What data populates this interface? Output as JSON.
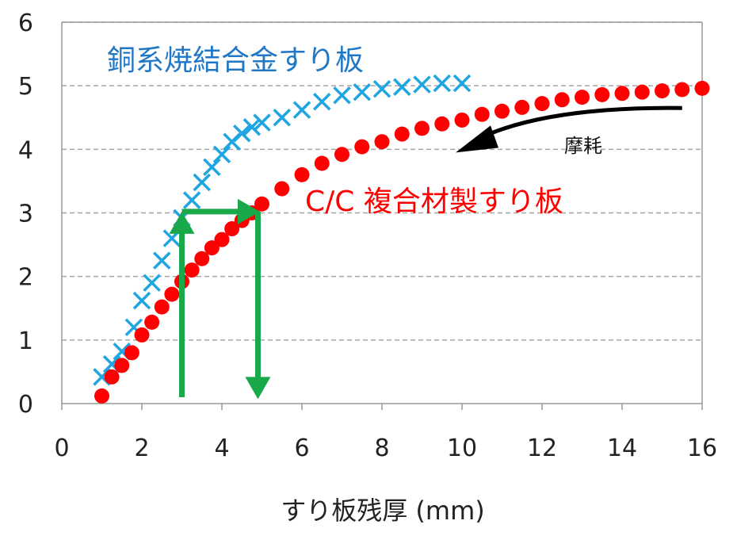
{
  "chart_data": {
    "type": "scatter",
    "xlabel": "すり板残厚 (mm)",
    "ylabel": "",
    "xlim": [
      0,
      16
    ],
    "ylim": [
      0,
      6
    ],
    "xticks": [
      "0",
      "2",
      "4",
      "6",
      "8",
      "10",
      "12",
      "14",
      "16"
    ],
    "yticks": [
      "0",
      "1",
      "2",
      "3",
      "4",
      "5",
      "6"
    ],
    "grid": "horizontal dashed",
    "series": [
      {
        "name": "銅系焼結合金すり板",
        "marker": "x",
        "color": "#1fa6e0",
        "points": [
          [
            1.0,
            0.42
          ],
          [
            1.25,
            0.62
          ],
          [
            1.5,
            0.82
          ],
          [
            1.8,
            1.2
          ],
          [
            2.0,
            1.62
          ],
          [
            2.25,
            1.9
          ],
          [
            2.5,
            2.25
          ],
          [
            2.75,
            2.6
          ],
          [
            3.0,
            2.92
          ],
          [
            3.25,
            3.2
          ],
          [
            3.5,
            3.48
          ],
          [
            3.75,
            3.72
          ],
          [
            4.0,
            3.92
          ],
          [
            4.25,
            4.12
          ],
          [
            4.5,
            4.25
          ],
          [
            4.75,
            4.35
          ],
          [
            5.0,
            4.42
          ],
          [
            5.5,
            4.5
          ],
          [
            6.0,
            4.62
          ],
          [
            6.5,
            4.75
          ],
          [
            7.0,
            4.85
          ],
          [
            7.5,
            4.9
          ],
          [
            8.0,
            4.95
          ],
          [
            8.5,
            4.98
          ],
          [
            9.0,
            5.02
          ],
          [
            9.5,
            5.04
          ],
          [
            10.0,
            5.04
          ]
        ]
      },
      {
        "name": "C/C 複合材製すり板",
        "marker": "circle",
        "color": "#ff0000",
        "points": [
          [
            1.0,
            0.12
          ],
          [
            1.25,
            0.42
          ],
          [
            1.5,
            0.6
          ],
          [
            1.75,
            0.8
          ],
          [
            2.0,
            1.08
          ],
          [
            2.25,
            1.28
          ],
          [
            2.5,
            1.52
          ],
          [
            2.75,
            1.72
          ],
          [
            3.0,
            1.92
          ],
          [
            3.25,
            2.1
          ],
          [
            3.5,
            2.28
          ],
          [
            3.75,
            2.45
          ],
          [
            4.0,
            2.58
          ],
          [
            4.25,
            2.75
          ],
          [
            4.5,
            2.88
          ],
          [
            4.75,
            3.0
          ],
          [
            5.0,
            3.14
          ],
          [
            5.5,
            3.38
          ],
          [
            6.0,
            3.6
          ],
          [
            6.5,
            3.78
          ],
          [
            7.0,
            3.92
          ],
          [
            7.5,
            4.04
          ],
          [
            8.0,
            4.12
          ],
          [
            8.5,
            4.24
          ],
          [
            9.0,
            4.33
          ],
          [
            9.5,
            4.4
          ],
          [
            10.0,
            4.46
          ],
          [
            10.5,
            4.55
          ],
          [
            11.0,
            4.6
          ],
          [
            11.5,
            4.66
          ],
          [
            12.0,
            4.72
          ],
          [
            12.5,
            4.78
          ],
          [
            13.0,
            4.82
          ],
          [
            13.5,
            4.86
          ],
          [
            14.0,
            4.88
          ],
          [
            14.5,
            4.9
          ],
          [
            15.0,
            4.92
          ],
          [
            15.5,
            4.94
          ],
          [
            16.0,
            4.96
          ]
        ]
      }
    ],
    "annotations": {
      "wear_label": "摩耗",
      "wear_arrow": {
        "from": [
          15.5,
          4.65
        ],
        "to": [
          10.0,
          4.05
        ],
        "color": "#000000"
      },
      "green_arrows": {
        "color": "#19a84a",
        "segments": [
          {
            "from": [
              3.0,
              0.1
            ],
            "to": [
              3.0,
              3.02
            ],
            "direction": "up"
          },
          {
            "from": [
              3.0,
              3.02
            ],
            "to": [
              4.95,
              3.02
            ],
            "direction": "right"
          },
          {
            "from": [
              4.9,
              3.02
            ],
            "to": [
              4.9,
              0.07
            ],
            "direction": "down"
          }
        ]
      }
    }
  },
  "colors": {
    "axis": "#999999",
    "grid": "#a6a6a6",
    "copper_label": "#1f77c6",
    "cc_label": "#ff0000"
  }
}
